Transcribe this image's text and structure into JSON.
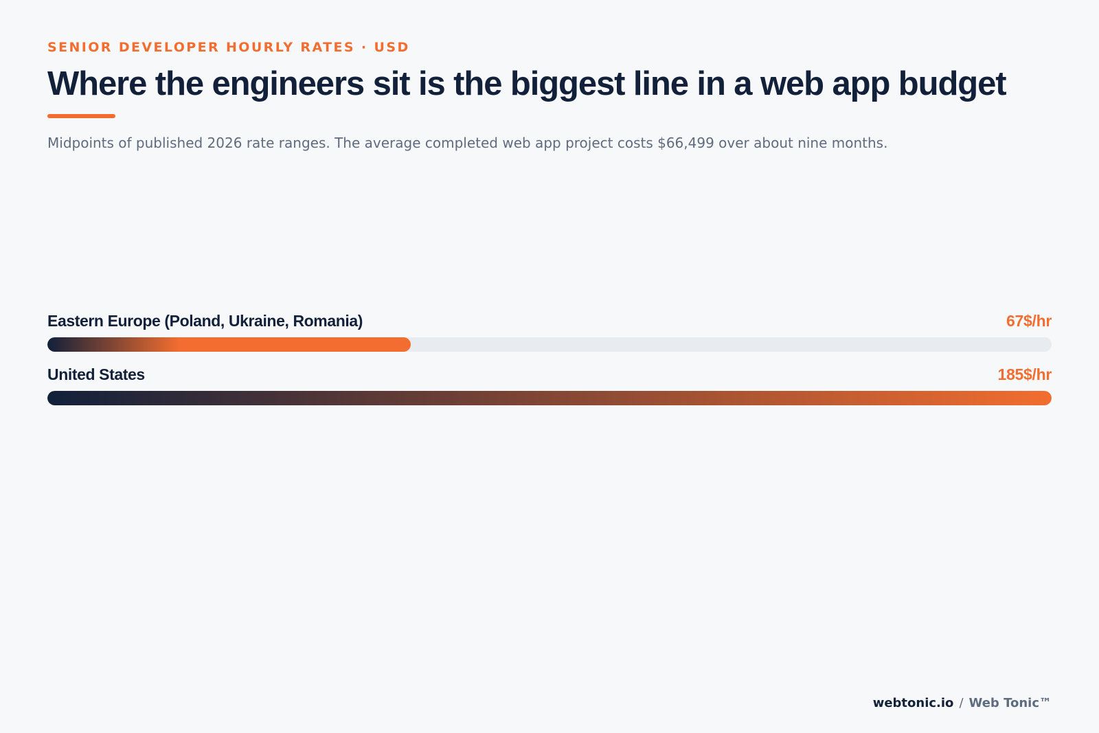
{
  "header": {
    "eyebrow": "SENIOR DEVELOPER HOURLY RATES · USD",
    "title": "Where the engineers sit is the biggest line in a web app budget",
    "subtitle": "Midpoints of published 2026 rate ranges. The average completed web app project costs $66,499 over about nine months."
  },
  "chart_data": {
    "type": "bar",
    "orientation": "horizontal",
    "categories": [
      "Eastern Europe (Poland, Ukraine, Romania)",
      "United States"
    ],
    "values": [
      67,
      185
    ],
    "value_labels": [
      "67$/hr",
      "185$/hr"
    ],
    "xlim": [
      0,
      185
    ],
    "grid": false,
    "legend": "none"
  },
  "colors": {
    "accent": "#f26d2f",
    "navy": "#12203a",
    "track": "#e8ebef",
    "muted": "#5f6b7e",
    "background": "#f7f8fa"
  },
  "footer": {
    "domain": "webtonic.io",
    "separator": "/",
    "brand": "Web Tonic™"
  }
}
